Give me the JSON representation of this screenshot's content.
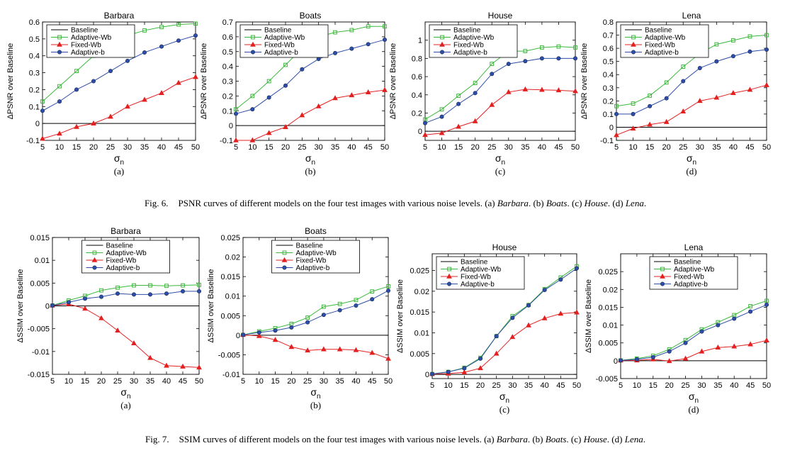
{
  "colors": {
    "Baseline": "#000000",
    "Adaptive-Wb": "#3cb83c",
    "Fixed-Wb": "#e32020",
    "Adaptive-b": "#2d4ea8"
  },
  "captions": {
    "fig6": {
      "label": "Fig. 6.",
      "text": "PSNR curves of different models on the four test images with various noise levels. (a) ",
      "a": "Barbara",
      "b_pre": ". (b) ",
      "b": "Boats",
      "c_pre": ". (c) ",
      "c": "House",
      "d_pre": ". (d) ",
      "d": "Lena",
      "end": "."
    },
    "fig7": {
      "label": "Fig. 7.",
      "text": "SSIM curves of different models on the four test images with various noise levels. (a) ",
      "a": "Barbara",
      "b_pre": ". (b) ",
      "b": "Boats",
      "c_pre": ". (c) ",
      "c": "House",
      "d_pre": ". (d) ",
      "d": "Lena",
      "end": "."
    }
  },
  "chart_data": [
    {
      "type": "line",
      "title": "Barbara",
      "subcaption": "(a)",
      "xlabel": "σ",
      "xlabel_sub": "n",
      "ylabel": "ΔPSNR over Baseline",
      "x": [
        5,
        10,
        15,
        20,
        25,
        30,
        35,
        40,
        45,
        50
      ],
      "xlim": [
        5,
        50
      ],
      "ylim": [
        -0.1,
        0.6
      ],
      "yticks": [
        -0.1,
        0,
        0.1,
        0.2,
        0.3,
        0.4,
        0.5,
        0.6
      ],
      "ytick_labels": [
        "-0.1",
        "0",
        "0.1",
        "0.2",
        "0.3",
        "0.4",
        "0.5",
        "0.6"
      ],
      "legend_position": "top-left",
      "series": [
        {
          "name": "Baseline",
          "marker": "none",
          "values": [
            0,
            0,
            0,
            0,
            0,
            0,
            0,
            0,
            0,
            0
          ]
        },
        {
          "name": "Adaptive-Wb",
          "marker": "square",
          "values": [
            0.13,
            0.22,
            0.31,
            0.4,
            0.47,
            0.52,
            0.55,
            0.57,
            0.585,
            0.59
          ]
        },
        {
          "name": "Fixed-Wb",
          "marker": "triangle",
          "values": [
            -0.09,
            -0.06,
            -0.02,
            0.0,
            0.04,
            0.1,
            0.14,
            0.18,
            0.24,
            0.275
          ]
        },
        {
          "name": "Adaptive-b",
          "marker": "circle",
          "values": [
            0.075,
            0.13,
            0.2,
            0.25,
            0.31,
            0.37,
            0.42,
            0.455,
            0.49,
            0.52
          ]
        }
      ]
    },
    {
      "type": "line",
      "title": "Boats",
      "subcaption": "(b)",
      "xlabel": "σ",
      "xlabel_sub": "n",
      "ylabel": "ΔPSNR over Baseline",
      "x": [
        5,
        10,
        15,
        20,
        25,
        30,
        35,
        40,
        45,
        50
      ],
      "xlim": [
        5,
        50
      ],
      "ylim": [
        -0.1,
        0.7
      ],
      "yticks": [
        -0.1,
        0,
        0.1,
        0.2,
        0.3,
        0.4,
        0.5,
        0.6,
        0.7
      ],
      "ytick_labels": [
        "-0.1",
        "0",
        "0.1",
        "0.2",
        "0.3",
        "0.4",
        "0.5",
        "0.6",
        "0.7"
      ],
      "legend_position": "top-left",
      "series": [
        {
          "name": "Baseline",
          "marker": "none",
          "values": [
            0,
            0,
            0,
            0,
            0,
            0,
            0,
            0,
            0,
            0
          ]
        },
        {
          "name": "Adaptive-Wb",
          "marker": "square",
          "values": [
            0.11,
            0.2,
            0.3,
            0.41,
            0.52,
            0.6,
            0.63,
            0.645,
            0.67,
            0.67
          ]
        },
        {
          "name": "Fixed-Wb",
          "marker": "triangle",
          "values": [
            -0.1,
            -0.1,
            -0.05,
            -0.01,
            0.07,
            0.13,
            0.185,
            0.205,
            0.225,
            0.24
          ]
        },
        {
          "name": "Adaptive-b",
          "marker": "circle",
          "values": [
            0.08,
            0.11,
            0.19,
            0.27,
            0.38,
            0.45,
            0.49,
            0.52,
            0.55,
            0.58
          ]
        }
      ]
    },
    {
      "type": "line",
      "title": "House",
      "subcaption": "(c)",
      "xlabel": "σ",
      "xlabel_sub": "n",
      "ylabel": "ΔPSNR over Baseline",
      "x": [
        5,
        10,
        15,
        20,
        25,
        30,
        35,
        40,
        45,
        50
      ],
      "xlim": [
        5,
        50
      ],
      "ylim": [
        -0.1,
        1.2
      ],
      "yticks": [
        0,
        0.2,
        0.4,
        0.6,
        0.8,
        1
      ],
      "ytick_labels": [
        "0",
        "0.2",
        "0.4",
        "0.6",
        "0.8",
        "1"
      ],
      "legend_position": "top-left",
      "series": [
        {
          "name": "Baseline",
          "marker": "none",
          "values": [
            0,
            0,
            0,
            0,
            0,
            0,
            0,
            0,
            0,
            0
          ]
        },
        {
          "name": "Adaptive-Wb",
          "marker": "square",
          "values": [
            0.13,
            0.24,
            0.39,
            0.53,
            0.74,
            0.88,
            0.88,
            0.92,
            0.93,
            0.92
          ]
        },
        {
          "name": "Fixed-Wb",
          "marker": "triangle",
          "values": [
            -0.04,
            -0.02,
            0.05,
            0.11,
            0.29,
            0.43,
            0.46,
            0.455,
            0.45,
            0.44
          ]
        },
        {
          "name": "Adaptive-b",
          "marker": "circle",
          "values": [
            0.09,
            0.16,
            0.3,
            0.42,
            0.63,
            0.74,
            0.77,
            0.8,
            0.8,
            0.8
          ]
        }
      ]
    },
    {
      "type": "line",
      "title": "Lena",
      "subcaption": "(d)",
      "xlabel": "σ",
      "xlabel_sub": "n",
      "ylabel": "ΔPSNR over Baseline",
      "x": [
        5,
        10,
        15,
        20,
        25,
        30,
        35,
        40,
        45,
        50
      ],
      "xlim": [
        5,
        50
      ],
      "ylim": [
        -0.1,
        0.8
      ],
      "yticks": [
        -0.1,
        0,
        0.1,
        0.2,
        0.3,
        0.4,
        0.5,
        0.6,
        0.7,
        0.8
      ],
      "ytick_labels": [
        "-0.1",
        "0",
        "0.1",
        "0.2",
        "0.3",
        "0.4",
        "0.5",
        "0.6",
        "0.7",
        "0.8"
      ],
      "legend_position": "top-left",
      "series": [
        {
          "name": "Baseline",
          "marker": "none",
          "values": [
            0,
            0,
            0,
            0,
            0,
            0,
            0,
            0,
            0,
            0
          ]
        },
        {
          "name": "Adaptive-Wb",
          "marker": "square",
          "values": [
            0.16,
            0.18,
            0.24,
            0.34,
            0.46,
            0.56,
            0.63,
            0.66,
            0.69,
            0.7
          ]
        },
        {
          "name": "Fixed-Wb",
          "marker": "triangle",
          "values": [
            -0.06,
            -0.01,
            0.02,
            0.04,
            0.12,
            0.2,
            0.225,
            0.26,
            0.285,
            0.32
          ]
        },
        {
          "name": "Adaptive-b",
          "marker": "circle",
          "values": [
            0.1,
            0.1,
            0.16,
            0.22,
            0.35,
            0.45,
            0.5,
            0.54,
            0.575,
            0.59
          ]
        }
      ]
    },
    {
      "type": "line",
      "title": "Barbara",
      "subcaption": "(a)",
      "xlabel": "σ",
      "xlabel_sub": "n",
      "ylabel": "ΔSSIM over Baseline",
      "x": [
        5,
        10,
        15,
        20,
        25,
        30,
        35,
        40,
        45,
        50
      ],
      "xlim": [
        5,
        50
      ],
      "ylim": [
        -0.015,
        0.015
      ],
      "yticks": [
        -0.015,
        -0.01,
        -0.005,
        0,
        0.005,
        0.01,
        0.015
      ],
      "ytick_labels": [
        "-0.015",
        "-0.01",
        "-0.005",
        "0",
        "0.005",
        "0.01",
        "0.015"
      ],
      "legend_position": "top-center",
      "series": [
        {
          "name": "Baseline",
          "marker": "none",
          "values": [
            0,
            0,
            0,
            0,
            0,
            0,
            0,
            0,
            0,
            0
          ]
        },
        {
          "name": "Adaptive-Wb",
          "marker": "square",
          "values": [
            0.0001,
            0.0012,
            0.0022,
            0.0034,
            0.004,
            0.0045,
            0.0045,
            0.0044,
            0.0045,
            0.0046
          ]
        },
        {
          "name": "Fixed-Wb",
          "marker": "triangle",
          "values": [
            0.0001,
            0.0004,
            -0.0006,
            -0.0027,
            -0.0054,
            -0.0082,
            -0.0114,
            -0.0131,
            -0.0133,
            -0.0135
          ]
        },
        {
          "name": "Adaptive-b",
          "marker": "circle",
          "values": [
            0.0001,
            0.0008,
            0.0016,
            0.002,
            0.0027,
            0.0025,
            0.0025,
            0.0027,
            0.0032,
            0.0032
          ]
        }
      ]
    },
    {
      "type": "line",
      "title": "Boats",
      "subcaption": "(b)",
      "xlabel": "σ",
      "xlabel_sub": "n",
      "ylabel": "ΔSSIM over Baseline",
      "x": [
        5,
        10,
        15,
        20,
        25,
        30,
        35,
        40,
        45,
        50
      ],
      "xlim": [
        5,
        50
      ],
      "ylim": [
        -0.01,
        0.025
      ],
      "yticks": [
        -0.01,
        -0.005,
        0,
        0.005,
        0.01,
        0.015,
        0.02,
        0.025
      ],
      "ytick_labels": [
        "-0.01",
        "-0.005",
        "0",
        "0.005",
        "0.01",
        "0.015",
        "0.02",
        "0.025"
      ],
      "legend_position": "top-center",
      "series": [
        {
          "name": "Baseline",
          "marker": "none",
          "values": [
            0,
            0,
            0,
            0,
            0,
            0,
            0,
            0,
            0,
            0
          ]
        },
        {
          "name": "Adaptive-Wb",
          "marker": "square",
          "values": [
            0.0001,
            0.001,
            0.0018,
            0.0029,
            0.0045,
            0.0073,
            0.008,
            0.009,
            0.0112,
            0.0125
          ]
        },
        {
          "name": "Fixed-Wb",
          "marker": "triangle",
          "values": [
            0.0001,
            -0.0002,
            -0.0012,
            -0.003,
            -0.0039,
            -0.0036,
            -0.0036,
            -0.0038,
            -0.0045,
            -0.006
          ]
        },
        {
          "name": "Adaptive-b",
          "marker": "circle",
          "values": [
            0.0001,
            0.0007,
            0.0012,
            0.002,
            0.0033,
            0.0052,
            0.0064,
            0.0076,
            0.0092,
            0.0114
          ]
        }
      ]
    },
    {
      "type": "line",
      "title": "House",
      "subcaption": "(c)",
      "xlabel": "σ",
      "xlabel_sub": "n",
      "ylabel": "ΔSSIM over Baseline",
      "x": [
        5,
        10,
        15,
        20,
        25,
        30,
        35,
        40,
        45,
        50
      ],
      "xlim": [
        5,
        50
      ],
      "ylim": [
        -0.001,
        0.029
      ],
      "yticks": [
        0,
        0.005,
        0.01,
        0.015,
        0.02,
        0.025
      ],
      "ytick_labels": [
        "0",
        "0.005",
        "0.01",
        "0.015",
        "0.02",
        "0.025"
      ],
      "legend_position": "top-left",
      "series": [
        {
          "name": "Baseline",
          "marker": "none",
          "values": [
            0,
            0,
            0,
            0,
            0,
            0,
            0,
            0,
            0,
            0
          ]
        },
        {
          "name": "Adaptive-Wb",
          "marker": "square",
          "values": [
            0.0001,
            0.0006,
            0.0016,
            0.004,
            0.0092,
            0.014,
            0.0167,
            0.0205,
            0.0233,
            0.026
          ]
        },
        {
          "name": "Fixed-Wb",
          "marker": "triangle",
          "values": [
            0.0001,
            0.0002,
            0.0005,
            0.0015,
            0.005,
            0.009,
            0.0118,
            0.0135,
            0.0146,
            0.0149
          ]
        },
        {
          "name": "Adaptive-b",
          "marker": "circle",
          "values": [
            0.0001,
            0.0006,
            0.0015,
            0.0038,
            0.0092,
            0.0136,
            0.0166,
            0.0203,
            0.0228,
            0.0255
          ]
        }
      ]
    },
    {
      "type": "line",
      "title": "Lena",
      "subcaption": "(d)",
      "xlabel": "σ",
      "xlabel_sub": "n",
      "ylabel": "ΔSSIM over Baseline",
      "x": [
        5,
        10,
        15,
        20,
        25,
        30,
        35,
        40,
        45,
        50
      ],
      "xlim": [
        5,
        50
      ],
      "ylim": [
        -0.005,
        0.03
      ],
      "yticks": [
        -0.005,
        0,
        0.005,
        0.01,
        0.015,
        0.02,
        0.025
      ],
      "ytick_labels": [
        "-0.005",
        "0",
        "0.005",
        "0.01",
        "0.015",
        "0.02",
        "0.025"
      ],
      "legend_position": "top-center",
      "series": [
        {
          "name": "Baseline",
          "marker": "none",
          "values": [
            0,
            0,
            0,
            0,
            0,
            0,
            0,
            0,
            0,
            0
          ]
        },
        {
          "name": "Adaptive-Wb",
          "marker": "square",
          "values": [
            0.0001,
            0.0006,
            0.0014,
            0.0032,
            0.0058,
            0.0088,
            0.0108,
            0.0128,
            0.0153,
            0.0168
          ]
        },
        {
          "name": "Fixed-Wb",
          "marker": "triangle",
          "values": [
            0.0001,
            0.0001,
            0.0004,
            -0.0001,
            0.0006,
            0.0026,
            0.0037,
            0.004,
            0.0046,
            0.0057
          ]
        },
        {
          "name": "Adaptive-b",
          "marker": "circle",
          "values": [
            0.0001,
            0.0004,
            0.001,
            0.0026,
            0.005,
            0.0082,
            0.01,
            0.0118,
            0.0138,
            0.0157
          ]
        }
      ]
    }
  ]
}
